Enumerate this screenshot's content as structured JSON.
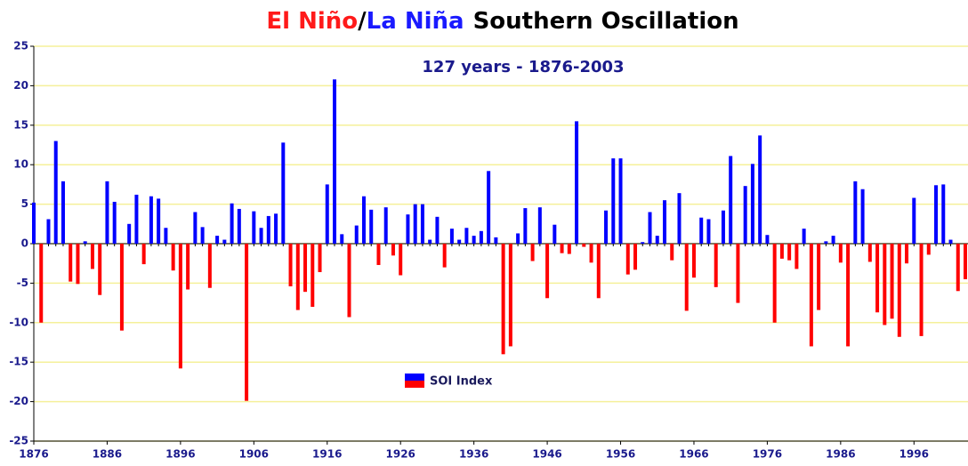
{
  "chart_data": {
    "type": "bar",
    "title_parts": [
      {
        "text": "El Niño",
        "color": "#ff1a1a"
      },
      {
        "text": "/",
        "color": "#000000"
      },
      {
        "text": "La Niña",
        "color": "#1a1aff"
      },
      {
        "text": "Southern Oscillation",
        "color": "#000000"
      }
    ],
    "subtitle": "127 years - 1876-2003",
    "x": [
      1876,
      1877,
      1878,
      1879,
      1880,
      1881,
      1882,
      1883,
      1884,
      1885,
      1886,
      1887,
      1888,
      1889,
      1890,
      1891,
      1892,
      1893,
      1894,
      1895,
      1896,
      1897,
      1898,
      1899,
      1900,
      1901,
      1902,
      1903,
      1904,
      1905,
      1906,
      1907,
      1908,
      1909,
      1910,
      1911,
      1912,
      1913,
      1914,
      1915,
      1916,
      1917,
      1918,
      1919,
      1920,
      1921,
      1922,
      1923,
      1924,
      1925,
      1926,
      1927,
      1928,
      1929,
      1930,
      1931,
      1932,
      1933,
      1934,
      1935,
      1936,
      1937,
      1938,
      1939,
      1940,
      1941,
      1942,
      1943,
      1944,
      1945,
      1946,
      1947,
      1948,
      1949,
      1950,
      1951,
      1952,
      1953,
      1954,
      1955,
      1956,
      1957,
      1958,
      1959,
      1960,
      1961,
      1962,
      1963,
      1964,
      1965,
      1966,
      1967,
      1968,
      1969,
      1970,
      1971,
      1972,
      1973,
      1974,
      1975,
      1976,
      1977,
      1978,
      1979,
      1980,
      1981,
      1982,
      1983,
      1984,
      1985,
      1986,
      1987,
      1988,
      1989,
      1990,
      1991,
      1992,
      1993,
      1994,
      1995,
      1996,
      1997,
      1998,
      1999,
      2000,
      2001,
      2002,
      2003
    ],
    "series": [
      {
        "name": "SOI Index",
        "color": "#0000ff",
        "negative_color": "#ff0000",
        "values": [
          5.2,
          -10,
          3.1,
          13,
          7.9,
          -4.8,
          -5.1,
          0.3,
          -3.2,
          -6.5,
          7.9,
          5.3,
          -11,
          2.5,
          6.2,
          -2.6,
          6,
          5.7,
          2,
          -3.4,
          -15.8,
          -5.8,
          4,
          2.1,
          -5.6,
          1,
          0.5,
          5.1,
          4.4,
          -19.9,
          4.1,
          2,
          3.5,
          3.8,
          12.8,
          -5.4,
          -8.4,
          -6.1,
          -8,
          -3.6,
          7.5,
          20.8,
          1.2,
          -9.3,
          2.3,
          6,
          4.3,
          -2.7,
          4.6,
          -1.5,
          -4,
          3.7,
          5,
          5,
          0.5,
          3.4,
          -3,
          1.9,
          0.5,
          2,
          1,
          1.6,
          9.2,
          0.8,
          -14,
          -13,
          1.3,
          4.5,
          -2.2,
          4.6,
          -6.9,
          2.4,
          -1.2,
          -1.3,
          15.5,
          -0.4,
          -2.4,
          -6.9,
          4.2,
          10.8,
          10.8,
          -3.9,
          -3.3,
          0.2,
          4,
          1,
          5.5,
          -2.1,
          6.4,
          -8.5,
          -4.3,
          3.3,
          3.1,
          -5.5,
          4.2,
          11.1,
          -7.5,
          7.3,
          10.1,
          13.7,
          1.1,
          -10,
          -1.9,
          -2.1,
          -3.2,
          1.9,
          -13,
          -8.4,
          0.3,
          1,
          -2.4,
          -13,
          7.9,
          6.9,
          -2.3,
          -8.7,
          -10.3,
          -9.5,
          -11.8,
          -2.5,
          5.8,
          -11.7,
          -1.4,
          7.4,
          7.5,
          0.5,
          -6,
          -4.5
        ]
      }
    ],
    "xlim": [
      1876,
      2003
    ],
    "xticks": [
      1876,
      1886,
      1896,
      1906,
      1916,
      1926,
      1936,
      1946,
      1956,
      1966,
      1976,
      1986,
      1996
    ],
    "ylim": [
      -25,
      25
    ],
    "yticks": [
      -25,
      -20,
      -15,
      -10,
      -5,
      0,
      5,
      10,
      15,
      20,
      25
    ],
    "grid": true,
    "grid_color": "#f5f09a"
  }
}
